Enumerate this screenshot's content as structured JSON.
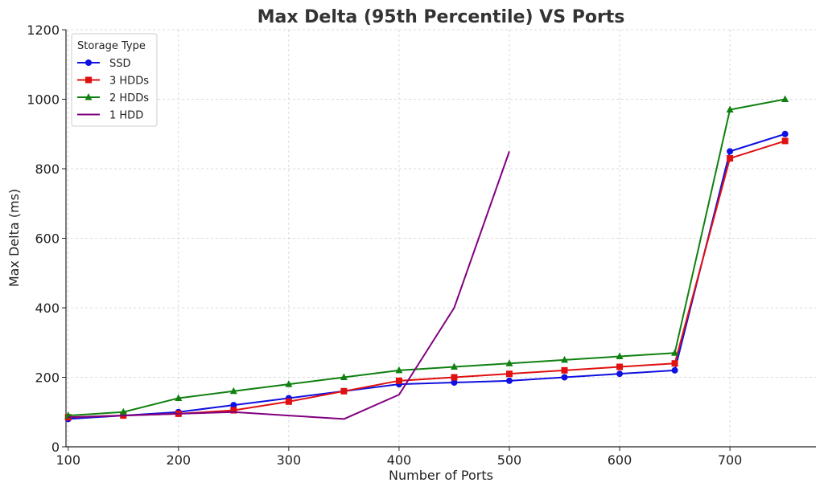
{
  "chart_data": {
    "type": "line",
    "title": "Max Delta (95th Percentile) VS Ports",
    "xlabel": "Number of Ports",
    "ylabel": "Max Delta (ms)",
    "xlim": [
      98,
      778
    ],
    "ylim": [
      0,
      1200
    ],
    "xticks": [
      100,
      200,
      300,
      400,
      500,
      600,
      700
    ],
    "yticks": [
      0,
      200,
      400,
      600,
      800,
      1000,
      1200
    ],
    "grid": true,
    "legend": {
      "title": "Storage Type",
      "placement": "top-left"
    },
    "series": [
      {
        "name": "SSD",
        "color": "#1010e0",
        "marker": "circle",
        "x": [
          100,
          150,
          200,
          250,
          300,
          350,
          400,
          450,
          500,
          550,
          600,
          650,
          700,
          750
        ],
        "y": [
          80,
          90,
          100,
          120,
          140,
          160,
          180,
          185,
          190,
          200,
          210,
          220,
          850,
          900
        ]
      },
      {
        "name": "3 HDDs",
        "color": "#e01010",
        "marker": "square",
        "x": [
          100,
          150,
          200,
          250,
          300,
          350,
          400,
          450,
          500,
          550,
          600,
          650,
          700,
          750
        ],
        "y": [
          85,
          90,
          95,
          105,
          130,
          160,
          190,
          200,
          210,
          220,
          230,
          240,
          830,
          880
        ]
      },
      {
        "name": "2 HDDs",
        "color": "#108010",
        "marker": "triangle",
        "x": [
          100,
          150,
          200,
          250,
          300,
          350,
          400,
          450,
          500,
          550,
          600,
          650,
          700,
          750
        ],
        "y": [
          90,
          100,
          140,
          160,
          180,
          200,
          220,
          230,
          240,
          250,
          260,
          270,
          970,
          1000
        ]
      },
      {
        "name": "1 HDD",
        "color": "#800080",
        "marker": "none",
        "x": [
          100,
          150,
          200,
          250,
          300,
          350,
          400,
          450,
          500
        ],
        "y": [
          85,
          90,
          95,
          100,
          90,
          80,
          150,
          400,
          850
        ]
      }
    ]
  }
}
